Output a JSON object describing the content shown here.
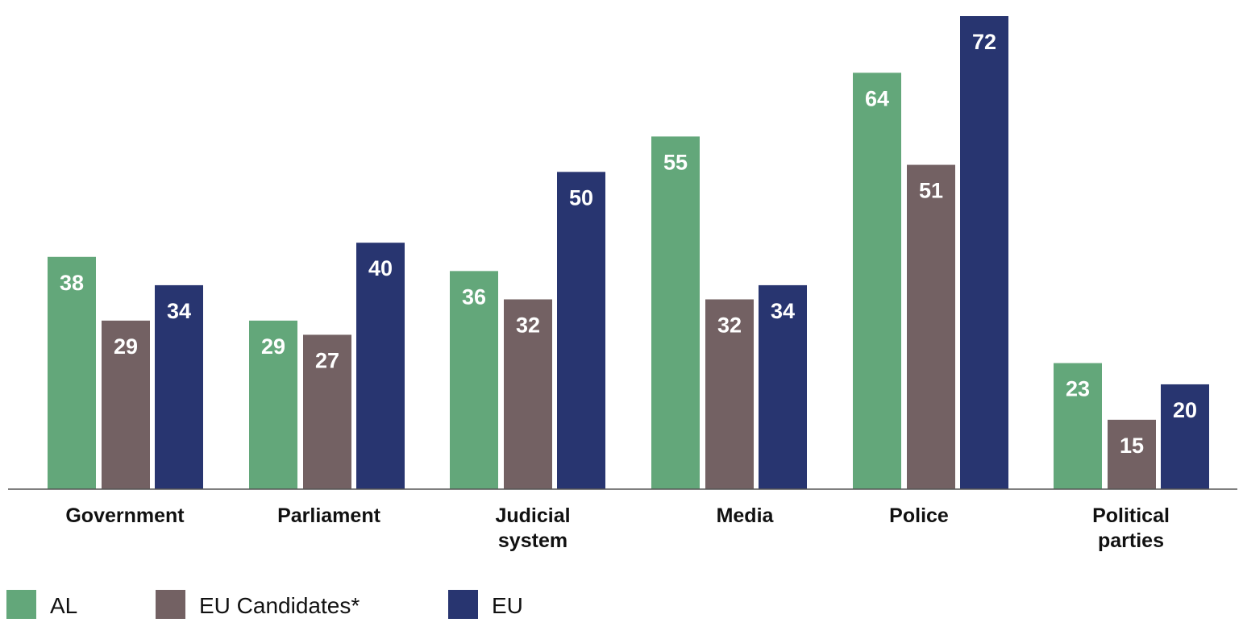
{
  "chart_data": {
    "type": "bar",
    "title": "",
    "xlabel": "",
    "ylabel": "",
    "ylim": [
      5.2,
      72
    ],
    "grid": false,
    "legend_position": "bottom-left",
    "categories": [
      [
        "Government"
      ],
      [
        "Parliament"
      ],
      [
        "Judicial",
        "system"
      ],
      [
        "Media"
      ],
      [
        "Police"
      ],
      [
        "Political",
        "parties"
      ]
    ],
    "series": [
      {
        "name": "AL",
        "color": "#63a77a",
        "values": [
          38,
          29,
          36,
          55,
          64,
          23
        ]
      },
      {
        "name": "EU Candidates*",
        "color": "#736163",
        "values": [
          29,
          27,
          32,
          32,
          51,
          15
        ]
      },
      {
        "name": "EU",
        "color": "#283570",
        "values": [
          34,
          40,
          50,
          34,
          72,
          20
        ]
      }
    ]
  }
}
